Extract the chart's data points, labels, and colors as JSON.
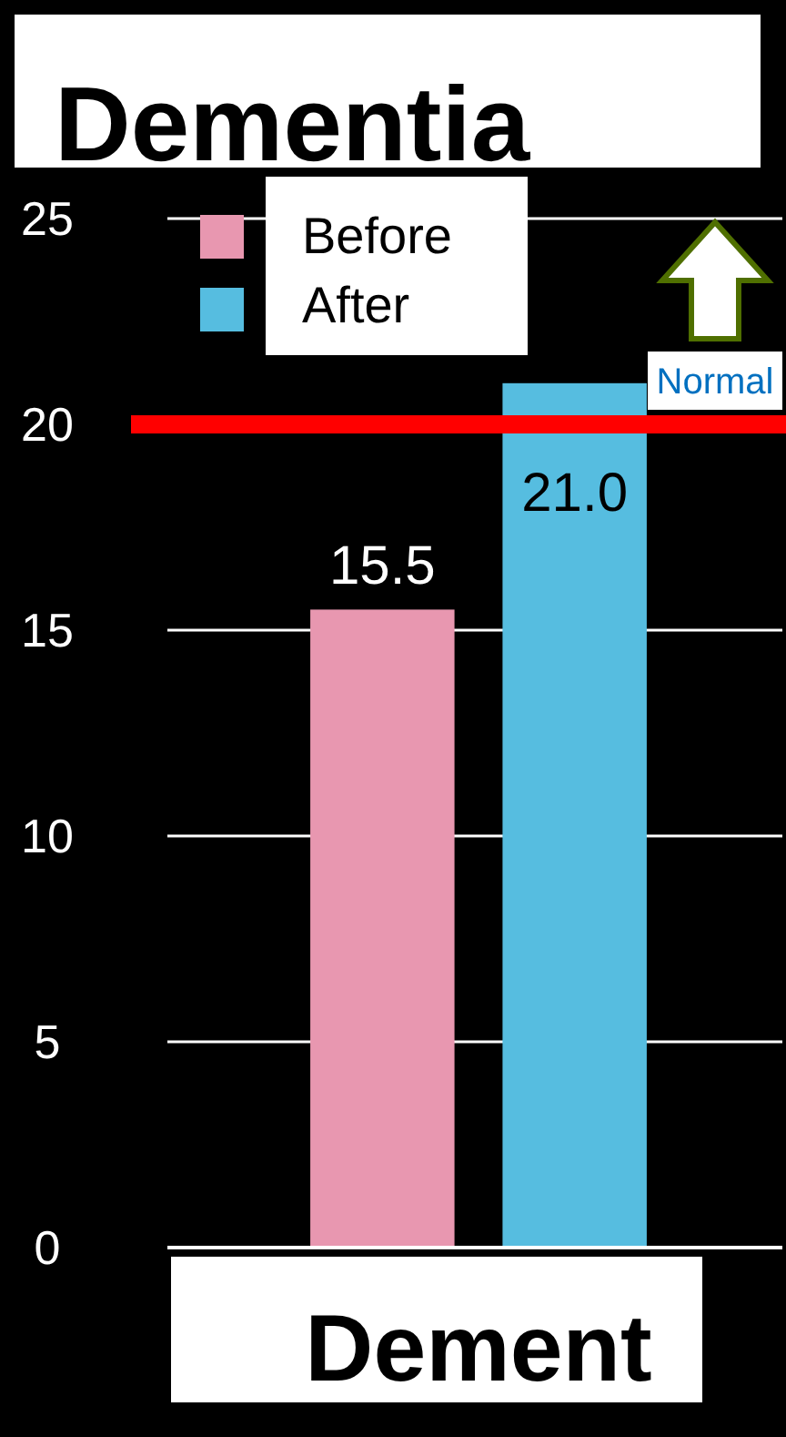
{
  "chart_data": {
    "type": "bar",
    "title": "Dementia",
    "categories": [
      "Dement"
    ],
    "series": [
      {
        "name": "Before",
        "color": "#e897b0",
        "values": [
          15.5
        ],
        "value_labels": [
          "15.5"
        ]
      },
      {
        "name": "After",
        "color": "#56bde0",
        "values": [
          21.0
        ],
        "value_labels": [
          "21.0"
        ]
      }
    ],
    "ylim": [
      0,
      25
    ],
    "yticks": [
      0,
      5,
      10,
      15,
      20,
      25
    ],
    "grid": "y",
    "legend": "top left",
    "ref_lines": [
      {
        "axis": "y",
        "value": 20,
        "label": "Normal",
        "color": "#ff0000"
      }
    ]
  }
}
